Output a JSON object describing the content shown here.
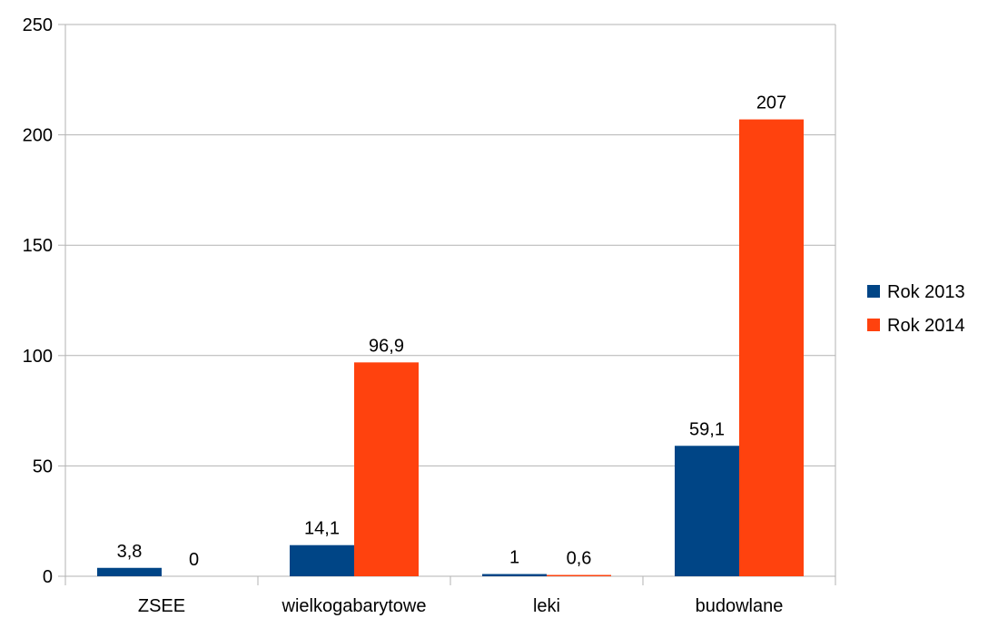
{
  "chart_data": {
    "type": "bar",
    "categories": [
      "ZSEE",
      "wielkogabarytowe",
      "leki",
      "budowlane"
    ],
    "series": [
      {
        "name": "Rok 2013",
        "color": "#004586",
        "values": [
          3.8,
          14.1,
          1,
          59.1
        ],
        "labels": [
          "3,8",
          "14,1",
          "1",
          "59,1"
        ]
      },
      {
        "name": "Rok 2014",
        "color": "#ff420e",
        "values": [
          0,
          96.9,
          0.6,
          207
        ],
        "labels": [
          "0",
          "96,9",
          "0,6",
          "207"
        ]
      }
    ],
    "ylim": [
      0,
      250
    ],
    "yticks": [
      0,
      50,
      100,
      150,
      200,
      250
    ],
    "grid": true,
    "legend": "right"
  }
}
